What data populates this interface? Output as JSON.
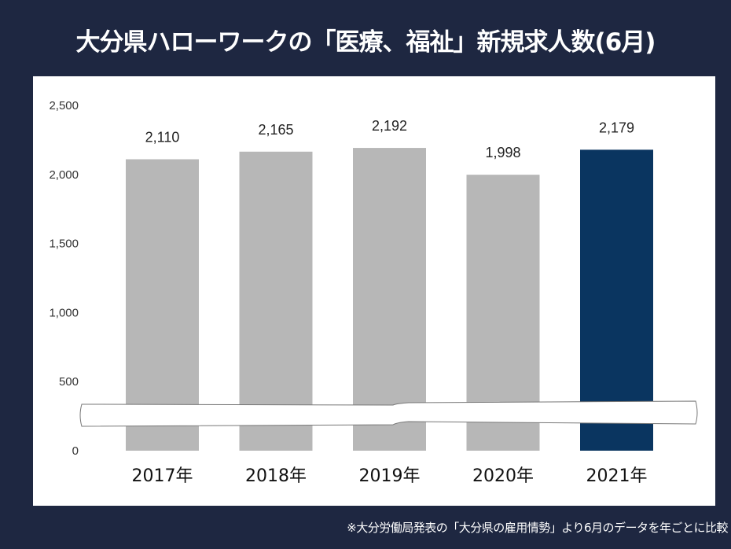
{
  "title": "大分県ハローワークの「医療、福祉」新規求人数(6月)",
  "footnote": "※大分労働局発表の「大分県の雇用情勢」より6月のデータを年ごとに比較",
  "colors": {
    "background": "#1e2741",
    "bar": "#b7b7b7",
    "highlight_bar": "#0a3560"
  },
  "chart_data": {
    "type": "bar",
    "title": "大分県ハローワークの「医療、福祉」新規求人数(6月)",
    "categories": [
      "2017年",
      "2018年",
      "2019年",
      "2020年",
      "2021年"
    ],
    "values": [
      2110,
      2165,
      2192,
      1998,
      2179
    ],
    "data_labels": [
      "2,110",
      "2,165",
      "2,192",
      "1,998",
      "2,179"
    ],
    "highlight": "2021年",
    "ylim": [
      0,
      2500
    ],
    "yticks": [
      0,
      500,
      1000,
      1500,
      2000,
      2500
    ],
    "ytick_labels": [
      "0",
      "500",
      "1,000",
      "1,500",
      "2,000",
      "2,500"
    ],
    "axis_break": true,
    "grid": false,
    "xlabel": "",
    "ylabel": ""
  }
}
